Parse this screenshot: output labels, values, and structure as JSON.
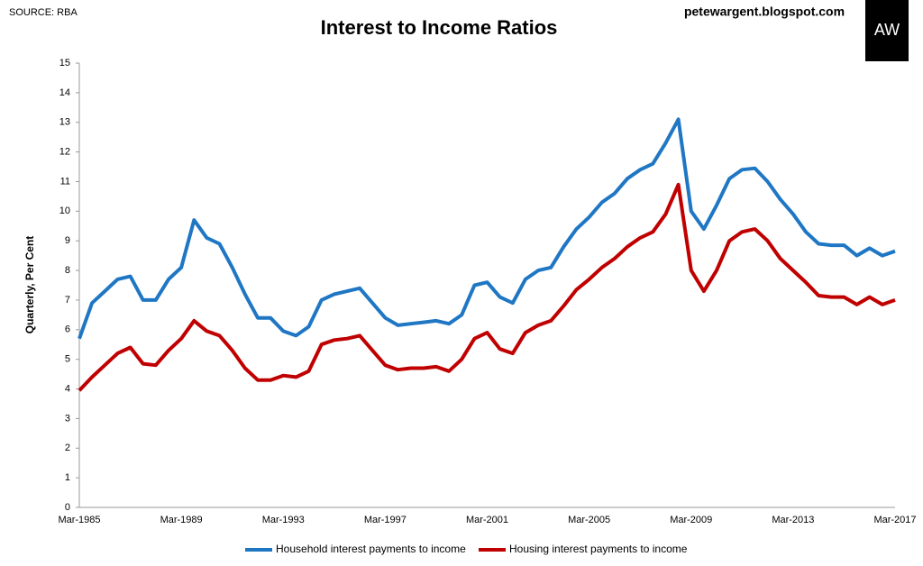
{
  "chart_data": {
    "type": "line",
    "title": "Interest to Income Ratios",
    "source": "SOURCE: RBA",
    "site": "petewargent.blogspot.com",
    "logo": "AW",
    "y_label": "Quarterly, Per Cent",
    "categories": [
      "Mar-1985",
      null,
      null,
      null,
      null,
      null,
      null,
      null,
      "Mar-1989",
      null,
      null,
      null,
      null,
      null,
      null,
      null,
      "Mar-1993",
      null,
      null,
      null,
      null,
      null,
      null,
      null,
      "Mar-1997",
      null,
      null,
      null,
      null,
      null,
      null,
      null,
      "Mar-2001",
      null,
      null,
      null,
      null,
      null,
      null,
      null,
      "Mar-2005",
      null,
      null,
      null,
      null,
      null,
      null,
      null,
      "Mar-2009",
      null,
      null,
      null,
      null,
      null,
      null,
      null,
      "Mar-2013",
      null,
      null,
      null,
      null,
      null,
      null,
      null,
      "Mar-2017"
    ],
    "series": [
      {
        "name": "Household interest payments to income",
        "color": "#1f77c4",
        "values": [
          5.7,
          6.9,
          7.3,
          7.7,
          7.8,
          7.0,
          7.0,
          7.7,
          8.1,
          9.7,
          9.1,
          8.9,
          8.1,
          7.2,
          6.4,
          6.4,
          5.95,
          5.8,
          6.1,
          7.0,
          7.2,
          7.3,
          7.4,
          6.9,
          6.4,
          6.15,
          6.2,
          6.25,
          6.3,
          6.2,
          6.5,
          7.5,
          7.6,
          7.1,
          6.9,
          7.7,
          8.0,
          8.1,
          8.8,
          9.4,
          9.8,
          10.3,
          10.6,
          11.1,
          11.4,
          11.6,
          12.3,
          13.1,
          10.0,
          9.4,
          10.2,
          11.1,
          11.4,
          11.45,
          11.0,
          10.4,
          9.9,
          9.3,
          8.9,
          8.85,
          8.85,
          8.5,
          8.75,
          8.5,
          8.65
        ]
      },
      {
        "name": "Housing interest payments to income",
        "color": "#c00000",
        "values": [
          3.95,
          4.4,
          4.8,
          5.2,
          5.4,
          4.85,
          4.8,
          5.3,
          5.7,
          6.3,
          5.95,
          5.8,
          5.3,
          4.7,
          4.3,
          4.3,
          4.45,
          4.4,
          4.6,
          5.5,
          5.65,
          5.7,
          5.8,
          5.3,
          4.8,
          4.65,
          4.7,
          4.7,
          4.75,
          4.6,
          5.0,
          5.7,
          5.9,
          5.35,
          5.2,
          5.9,
          6.15,
          6.3,
          6.8,
          7.35,
          7.7,
          8.1,
          8.4,
          8.8,
          9.1,
          9.3,
          9.9,
          10.9,
          8.0,
          7.3,
          8.0,
          9.0,
          9.3,
          9.4,
          9.0,
          8.4,
          8.0,
          7.6,
          7.15,
          7.1,
          7.1,
          6.85,
          7.1,
          6.85,
          7.0
        ]
      }
    ],
    "ylim": [
      0,
      15
    ],
    "yticks": [
      0,
      1,
      2,
      3,
      4,
      5,
      6,
      7,
      8,
      9,
      10,
      11,
      12,
      13,
      14,
      15
    ],
    "grid": false,
    "legend": "bottom"
  }
}
